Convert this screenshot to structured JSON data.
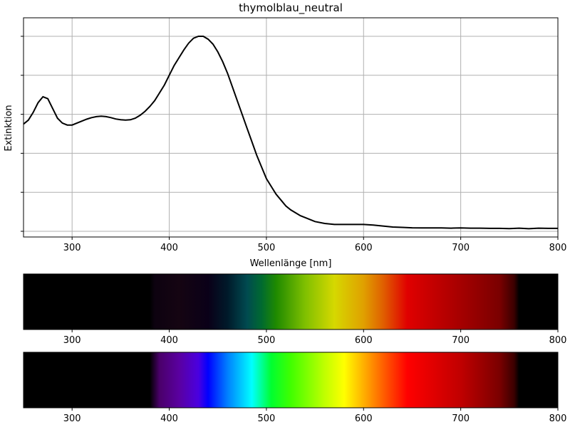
{
  "chart_data": [
    {
      "type": "line",
      "title": "thymolblau_neutral",
      "xlabel": "Wellenlänge [nm]",
      "ylabel": "Extinktion",
      "xlim": [
        250,
        800
      ],
      "ylim": [
        0,
        1.0
      ],
      "grid": true,
      "x_ticks": [
        300,
        400,
        500,
        600,
        700,
        800
      ],
      "y_tick_values": [
        0.0,
        0.2,
        0.4,
        0.6,
        0.8,
        1.0
      ],
      "y_tick_labels_shown": false,
      "series": [
        {
          "color": "#000000",
          "x": [
            250,
            255,
            260,
            265,
            270,
            275,
            280,
            285,
            290,
            295,
            300,
            305,
            310,
            315,
            320,
            325,
            330,
            335,
            340,
            345,
            350,
            355,
            360,
            365,
            370,
            375,
            380,
            385,
            390,
            395,
            400,
            405,
            410,
            415,
            420,
            425,
            430,
            435,
            440,
            445,
            450,
            455,
            460,
            465,
            470,
            475,
            480,
            485,
            490,
            495,
            500,
            505,
            510,
            515,
            520,
            525,
            530,
            535,
            540,
            545,
            550,
            560,
            570,
            580,
            590,
            600,
            610,
            620,
            630,
            640,
            650,
            660,
            670,
            680,
            690,
            700,
            710,
            720,
            730,
            740,
            750,
            760,
            770,
            780,
            790,
            800
          ],
          "y": [
            0.55,
            0.57,
            0.61,
            0.66,
            0.69,
            0.68,
            0.63,
            0.58,
            0.555,
            0.545,
            0.545,
            0.555,
            0.565,
            0.575,
            0.583,
            0.588,
            0.59,
            0.588,
            0.583,
            0.576,
            0.572,
            0.57,
            0.572,
            0.58,
            0.595,
            0.615,
            0.64,
            0.67,
            0.71,
            0.75,
            0.8,
            0.85,
            0.89,
            0.93,
            0.965,
            0.99,
            1.0,
            1.0,
            0.985,
            0.96,
            0.92,
            0.87,
            0.81,
            0.74,
            0.67,
            0.6,
            0.53,
            0.46,
            0.39,
            0.33,
            0.27,
            0.23,
            0.19,
            0.16,
            0.13,
            0.11,
            0.095,
            0.08,
            0.07,
            0.06,
            0.05,
            0.04,
            0.035,
            0.035,
            0.035,
            0.035,
            0.032,
            0.027,
            0.022,
            0.02,
            0.018,
            0.017,
            0.017,
            0.017,
            0.016,
            0.017,
            0.016,
            0.016,
            0.015,
            0.015,
            0.014,
            0.016,
            0.013,
            0.016,
            0.015,
            0.015
          ]
        }
      ]
    },
    {
      "type": "heatmap",
      "name": "absorption-spectrum",
      "xlim": [
        250,
        800
      ],
      "x_ticks": [
        300,
        400,
        500,
        600,
        700,
        800
      ],
      "description_of_bands": "visible spectrum 380–760 nm attenuated by absorbance; black outside visible range",
      "stops": [
        {
          "nm": 380,
          "color": "#000000"
        },
        {
          "nm": 385,
          "color": "#0d0210"
        },
        {
          "nm": 410,
          "color": "#150512"
        },
        {
          "nm": 440,
          "color": "#0a0018"
        },
        {
          "nm": 460,
          "color": "#001a2a"
        },
        {
          "nm": 480,
          "color": "#004a50"
        },
        {
          "nm": 495,
          "color": "#006a30"
        },
        {
          "nm": 510,
          "color": "#1f8a00"
        },
        {
          "nm": 540,
          "color": "#80c000"
        },
        {
          "nm": 570,
          "color": "#d6d800"
        },
        {
          "nm": 600,
          "color": "#e0a000"
        },
        {
          "nm": 620,
          "color": "#e06000"
        },
        {
          "nm": 645,
          "color": "#e00000"
        },
        {
          "nm": 690,
          "color": "#b00000"
        },
        {
          "nm": 740,
          "color": "#7a0000"
        },
        {
          "nm": 755,
          "color": "#3a0000"
        },
        {
          "nm": 760,
          "color": "#000000"
        }
      ]
    },
    {
      "type": "heatmap",
      "name": "visible-spectrum",
      "xlim": [
        250,
        800
      ],
      "x_ticks": [
        300,
        400,
        500,
        600,
        700,
        800
      ],
      "stops": [
        {
          "nm": 380,
          "color": "#000000"
        },
        {
          "nm": 390,
          "color": "#4a006a"
        },
        {
          "nm": 410,
          "color": "#5a00a0"
        },
        {
          "nm": 430,
          "color": "#4a00e0"
        },
        {
          "nm": 440,
          "color": "#0000ff"
        },
        {
          "nm": 460,
          "color": "#0080ff"
        },
        {
          "nm": 485,
          "color": "#00ffff"
        },
        {
          "nm": 505,
          "color": "#00ff30"
        },
        {
          "nm": 525,
          "color": "#40ff00"
        },
        {
          "nm": 560,
          "color": "#c0ff00"
        },
        {
          "nm": 580,
          "color": "#ffff00"
        },
        {
          "nm": 600,
          "color": "#ffb000"
        },
        {
          "nm": 620,
          "color": "#ff6000"
        },
        {
          "nm": 645,
          "color": "#ff0000"
        },
        {
          "nm": 700,
          "color": "#c00000"
        },
        {
          "nm": 740,
          "color": "#7a0000"
        },
        {
          "nm": 755,
          "color": "#3a0000"
        },
        {
          "nm": 760,
          "color": "#000000"
        }
      ]
    }
  ]
}
